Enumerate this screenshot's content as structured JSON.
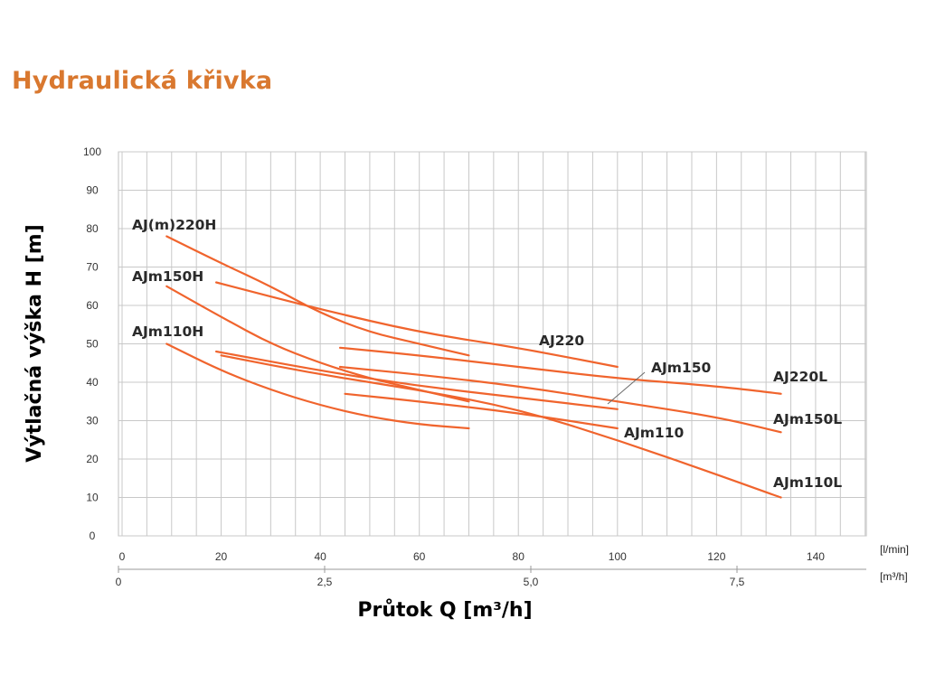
{
  "title": "Hydraulická křivka",
  "chart_data": {
    "type": "line",
    "xlabel": "Průtok Q [m³/h]",
    "ylabel": "Výtlačná výška H [m]",
    "x_unit_primary": "[l/min]",
    "x_unit_secondary": "[m³/h]",
    "xlim": [
      0,
      150
    ],
    "ylim": [
      0,
      100
    ],
    "x_ticks_lmin": [
      "0",
      "20",
      "40",
      "60",
      "80",
      "100",
      "120",
      "140"
    ],
    "x_ticks_m3h": [
      "0",
      "2,5",
      "5,0",
      "7,5"
    ],
    "y_ticks": [
      "0",
      "10",
      "20",
      "30",
      "40",
      "50",
      "60",
      "70",
      "80",
      "90",
      "100"
    ],
    "grid": true,
    "line_color": "#f0642d",
    "series": [
      {
        "name": "AJ(m)220H",
        "x": [
          9,
          20,
          30,
          40,
          50,
          60,
          70
        ],
        "y": [
          78,
          71,
          65,
          58,
          53,
          50,
          47
        ]
      },
      {
        "name": "AJm150H",
        "x": [
          9,
          20,
          30,
          40,
          50,
          60,
          70
        ],
        "y": [
          65,
          57,
          50,
          45,
          41,
          38,
          35
        ]
      },
      {
        "name": "AJm110H",
        "x": [
          9,
          20,
          30,
          40,
          50,
          60,
          70
        ],
        "y": [
          50,
          43,
          38,
          34,
          31,
          29,
          28
        ]
      },
      {
        "name": "AJ220",
        "x": [
          19,
          40,
          60,
          80,
          100
        ],
        "y": [
          66,
          59,
          53,
          49,
          44
        ]
      },
      {
        "name": "AJm150",
        "x": [
          19,
          40,
          60,
          80,
          100
        ],
        "y": [
          48,
          43,
          39,
          36,
          33
        ]
      },
      {
        "name": "AJm110",
        "x": [
          45,
          60,
          80,
          100
        ],
        "y": [
          37,
          35,
          32,
          28
        ]
      },
      {
        "name": "AJ220L",
        "x": [
          44,
          60,
          80,
          100,
          120,
          133
        ],
        "y": [
          49,
          47,
          44,
          41,
          39,
          37
        ]
      },
      {
        "name": "AJm150L",
        "x": [
          44,
          60,
          80,
          100,
          120,
          133
        ],
        "y": [
          44,
          42,
          39,
          35,
          31,
          27
        ]
      },
      {
        "name": "AJm110L",
        "x": [
          20,
          40,
          60,
          80,
          100,
          120,
          133
        ],
        "y": [
          47,
          42,
          38,
          33,
          25,
          16,
          10
        ]
      }
    ],
    "labels": [
      "AJ(m)220H",
      "AJm150H",
      "AJm110H",
      "AJ220",
      "AJm150",
      "AJm110",
      "AJ220L",
      "AJm150L",
      "AJm110L"
    ]
  }
}
